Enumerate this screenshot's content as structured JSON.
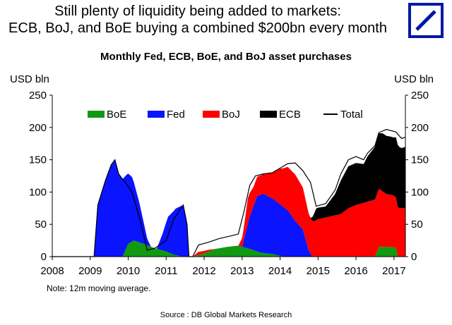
{
  "header": {
    "line1": "Still plenty of liquidity being added to markets:",
    "line2": "ECB, BoJ, and BoE buying a combined $200bn every month"
  },
  "brand": {
    "name": "deutsche-bank-logo",
    "color": "#0018a8"
  },
  "note": "Note: 12m moving average.",
  "source": "Source : DB Global Markets Research",
  "chart_data": {
    "type": "area",
    "stacked": true,
    "title": "Monthly Fed, ECB, BoE, and BoJ asset purchases",
    "ylabel_left": "USD bln",
    "ylabel_right": "USD bln",
    "ylim": [
      0,
      250
    ],
    "yticks": [
      0,
      50,
      100,
      150,
      200,
      250
    ],
    "xlim": [
      2008,
      2017.3
    ],
    "xticks": [
      "2008",
      "2009",
      "2010",
      "2011",
      "2012",
      "2013",
      "2014",
      "2015",
      "2016",
      "2017"
    ],
    "legend": [
      {
        "name": "BoE",
        "color": "#119911",
        "kind": "area"
      },
      {
        "name": "Fed",
        "color": "#0a14ff",
        "kind": "area"
      },
      {
        "name": "BoJ",
        "color": "#ff0000",
        "kind": "area"
      },
      {
        "name": "ECB",
        "color": "#000000",
        "kind": "area"
      },
      {
        "name": "Total",
        "color": "#000000",
        "kind": "line"
      }
    ],
    "stack_order": [
      "BoE",
      "Fed",
      "BoJ",
      "ECB"
    ],
    "series": [
      {
        "name": "BoE",
        "color": "#119911",
        "points": [
          [
            2008.0,
            0
          ],
          [
            2009.85,
            0
          ],
          [
            2010.0,
            20
          ],
          [
            2010.15,
            25
          ],
          [
            2010.4,
            20
          ],
          [
            2010.7,
            13
          ],
          [
            2011.0,
            8
          ],
          [
            2011.2,
            3
          ],
          [
            2011.45,
            0
          ],
          [
            2011.7,
            0
          ],
          [
            2012.0,
            5
          ],
          [
            2012.3,
            12
          ],
          [
            2012.6,
            15
          ],
          [
            2012.9,
            17
          ],
          [
            2013.2,
            12
          ],
          [
            2013.5,
            6
          ],
          [
            2013.8,
            4
          ],
          [
            2014.1,
            0
          ],
          [
            2016.5,
            0
          ],
          [
            2016.6,
            15
          ],
          [
            2016.9,
            15
          ],
          [
            2017.05,
            14
          ],
          [
            2017.1,
            0
          ],
          [
            2017.3,
            0
          ]
        ]
      },
      {
        "name": "Fed",
        "color": "#0a14ff",
        "points": [
          [
            2008.0,
            0
          ],
          [
            2009.1,
            0
          ],
          [
            2009.2,
            80
          ],
          [
            2009.4,
            118
          ],
          [
            2009.55,
            142
          ],
          [
            2009.65,
            150
          ],
          [
            2009.75,
            128
          ],
          [
            2009.85,
            120
          ],
          [
            2009.95,
            113
          ],
          [
            2010.1,
            100
          ],
          [
            2010.3,
            60
          ],
          [
            2010.5,
            10
          ],
          [
            2010.6,
            0
          ],
          [
            2010.75,
            0
          ],
          [
            2010.9,
            25
          ],
          [
            2011.05,
            55
          ],
          [
            2011.25,
            72
          ],
          [
            2011.45,
            80
          ],
          [
            2011.55,
            50
          ],
          [
            2011.6,
            0
          ],
          [
            2013.0,
            0
          ],
          [
            2013.2,
            50
          ],
          [
            2013.4,
            86
          ],
          [
            2013.55,
            92
          ],
          [
            2013.8,
            86
          ],
          [
            2014.0,
            80
          ],
          [
            2014.2,
            72
          ],
          [
            2014.4,
            55
          ],
          [
            2014.6,
            42
          ],
          [
            2014.75,
            10
          ],
          [
            2014.85,
            0
          ],
          [
            2017.3,
            0
          ]
        ]
      },
      {
        "name": "BoJ",
        "color": "#ff0000",
        "points": [
          [
            2008.0,
            0
          ],
          [
            2011.7,
            0
          ],
          [
            2011.85,
            5
          ],
          [
            2012.1,
            3
          ],
          [
            2012.3,
            0
          ],
          [
            2012.5,
            0
          ],
          [
            2012.7,
            -1
          ],
          [
            2012.9,
            0
          ],
          [
            2013.05,
            20
          ],
          [
            2013.15,
            40
          ],
          [
            2013.3,
            30
          ],
          [
            2013.55,
            30
          ],
          [
            2013.8,
            40
          ],
          [
            2014.0,
            55
          ],
          [
            2014.2,
            67
          ],
          [
            2014.4,
            72
          ],
          [
            2014.6,
            65
          ],
          [
            2014.8,
            55
          ],
          [
            2014.9,
            55
          ],
          [
            2015.0,
            58
          ],
          [
            2015.3,
            62
          ],
          [
            2015.6,
            66
          ],
          [
            2015.8,
            75
          ],
          [
            2016.0,
            80
          ],
          [
            2016.3,
            85
          ],
          [
            2016.6,
            90
          ],
          [
            2016.8,
            82
          ],
          [
            2017.0,
            80
          ],
          [
            2017.15,
            75
          ],
          [
            2017.3,
            75
          ]
        ]
      },
      {
        "name": "ECB",
        "color": "#000000",
        "points": [
          [
            2008.0,
            0
          ],
          [
            2014.8,
            0
          ],
          [
            2014.95,
            18
          ],
          [
            2015.2,
            17
          ],
          [
            2015.45,
            33
          ],
          [
            2015.6,
            52
          ],
          [
            2015.8,
            65
          ],
          [
            2016.0,
            65
          ],
          [
            2016.2,
            60
          ],
          [
            2016.3,
            70
          ],
          [
            2016.5,
            82
          ],
          [
            2016.7,
            90
          ],
          [
            2016.85,
            90
          ],
          [
            2017.0,
            90
          ],
          [
            2017.1,
            96
          ],
          [
            2017.2,
            93
          ],
          [
            2017.3,
            95
          ]
        ]
      }
    ],
    "total_line": {
      "name": "Total",
      "color": "#000000",
      "points": [
        [
          2008.0,
          0
        ],
        [
          2009.1,
          0
        ],
        [
          2009.2,
          80
        ],
        [
          2009.4,
          118
        ],
        [
          2009.55,
          142
        ],
        [
          2009.65,
          150
        ],
        [
          2009.75,
          128
        ],
        [
          2009.85,
          120
        ],
        [
          2009.95,
          113
        ],
        [
          2010.1,
          100
        ],
        [
          2010.3,
          60
        ],
        [
          2010.5,
          10
        ],
        [
          2010.7,
          13
        ],
        [
          2011.0,
          25
        ],
        [
          2011.2,
          58
        ],
        [
          2011.45,
          80
        ],
        [
          2011.55,
          50
        ],
        [
          2011.6,
          0
        ],
        [
          2011.7,
          0
        ],
        [
          2011.85,
          18
        ],
        [
          2012.1,
          22
        ],
        [
          2012.4,
          28
        ],
        [
          2012.7,
          32
        ],
        [
          2012.9,
          35
        ],
        [
          2013.05,
          70
        ],
        [
          2013.2,
          110
        ],
        [
          2013.35,
          125
        ],
        [
          2013.55,
          128
        ],
        [
          2013.8,
          130
        ],
        [
          2014.0,
          137
        ],
        [
          2014.2,
          144
        ],
        [
          2014.4,
          145
        ],
        [
          2014.6,
          133
        ],
        [
          2014.8,
          115
        ],
        [
          2014.95,
          78
        ],
        [
          2015.2,
          82
        ],
        [
          2015.45,
          103
        ],
        [
          2015.6,
          128
        ],
        [
          2015.8,
          150
        ],
        [
          2016.0,
          155
        ],
        [
          2016.2,
          150
        ],
        [
          2016.3,
          160
        ],
        [
          2016.5,
          172
        ],
        [
          2016.6,
          192
        ],
        [
          2016.8,
          197
        ],
        [
          2017.05,
          193
        ],
        [
          2017.2,
          183
        ],
        [
          2017.3,
          185
        ]
      ]
    }
  }
}
